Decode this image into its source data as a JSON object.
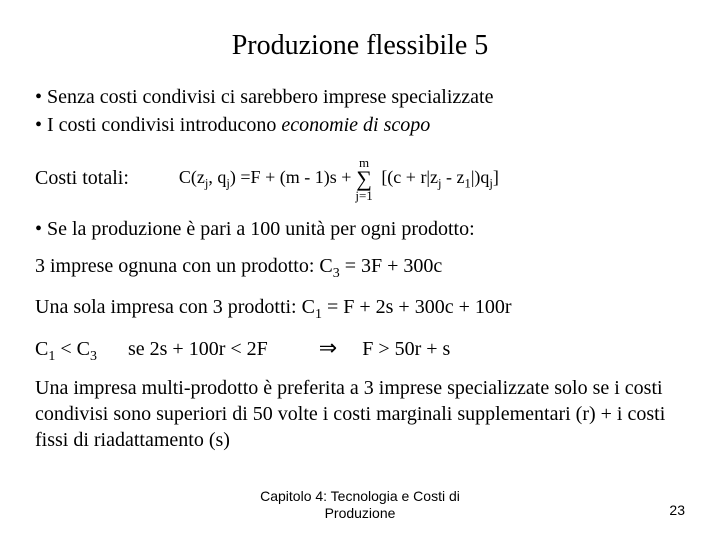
{
  "title": "Produzione flessibile 5",
  "bullet1": "• Senza costi condivisi ci sarebbero imprese specializzate",
  "bullet2_pre": "• I costi condivisi introducono ",
  "bullet2_em": "economie di scopo",
  "formula": {
    "label": "Costi totali:",
    "left": "C(z",
    "left_sub": "j",
    "left2": ", q",
    "left2_sub": "j",
    "left3": ") =F + (m - 1)s + ",
    "sum_top": "m",
    "sum_bottom": "j=1",
    "right1": "[(c + r|z",
    "right1_sub": "j",
    "right2": " - z",
    "right2_sub": "1",
    "right3": "|)q",
    "right3_sub": "j",
    "right4": "]"
  },
  "line_if": "• Se la produzione è pari a 100 unità per ogni prodotto:",
  "line_c3_a": "3 imprese ognuna con un prodotto: C",
  "line_c3_b": " = 3F + 300c",
  "line_c1_a": "Una sola impresa con 3 prodotti: C",
  "line_c1_b": " = F + 2s + 300c + 100r",
  "cond": {
    "seg1_a": "C",
    "seg1_b": " < C",
    "seg2": "se 2s + 100r < 2F",
    "seg3": "F > 50r + s"
  },
  "conclusion": "Una impresa multi-prodotto è preferita a 3 imprese specializzate solo se i costi condivisi sono superiori di 50 volte i costi marginali supplementari (r) + i costi fissi di riadattamento (s)",
  "footer_line1": "Capitolo 4: Tecnologia e Costi di",
  "footer_line2": "Produzione",
  "page": "23",
  "subs": {
    "one": "1",
    "three": "3"
  }
}
